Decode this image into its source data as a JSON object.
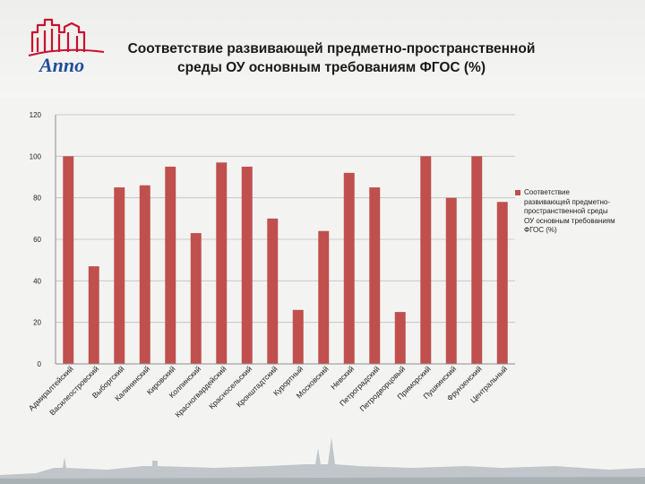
{
  "header": {
    "logo_text": "Аппо",
    "title_line1": "Соответствие развивающей предметно-пространственной",
    "title_line2": "среды ОУ основным требованиям ФГОС (%)"
  },
  "colors": {
    "bar": "#c0504d",
    "grid": "#bfbfbf",
    "axis": "#8c8c8c",
    "brand": "#c8102e",
    "logo_blue": "#1f4e9c"
  },
  "chart_data": {
    "type": "bar",
    "title": "Соответствие развивающей предметно-пространственной среды ОУ основным требованиям ФГОС (%)",
    "xlabel": "",
    "ylabel": "",
    "ylim": [
      0,
      120
    ],
    "yticks": [
      0,
      20,
      40,
      60,
      80,
      100,
      120
    ],
    "grid": true,
    "legend_position": "right",
    "categories": [
      "Адмиралтейский",
      "Василеостровский",
      "Выборгский",
      "Калининский",
      "Кировский",
      "Колпинский",
      "Красногвардейский",
      "Красносельский",
      "Кронштадтский",
      "Курортный",
      "Московский",
      "Невский",
      "Петроградский",
      "Петродворцовый",
      "Приморский",
      "Пушкинский",
      "Фрунзенский",
      "Центральный"
    ],
    "series": [
      {
        "name": "Соответствие развивающей предметно-пространственной среды ОУ основным требованиям ФГОС (%)",
        "values": [
          100,
          47,
          85,
          86,
          95,
          63,
          97,
          95,
          70,
          26,
          64,
          92,
          85,
          25,
          100,
          80,
          100,
          78
        ]
      }
    ]
  }
}
